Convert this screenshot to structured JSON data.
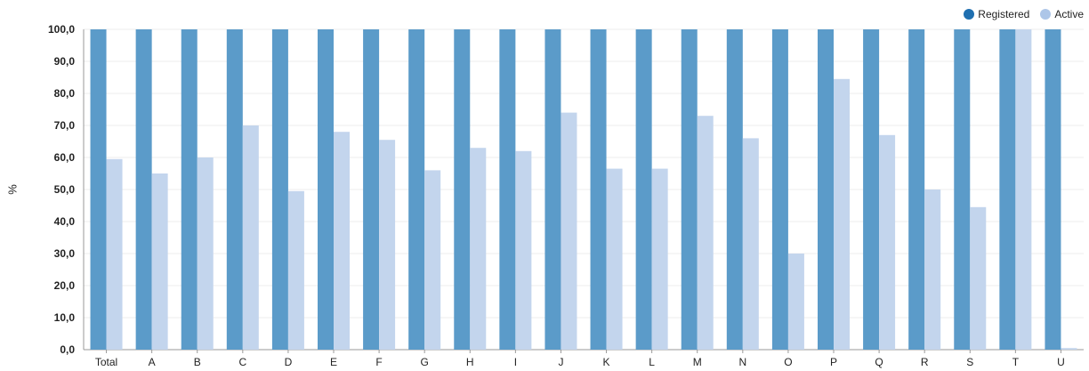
{
  "chart_data": {
    "type": "bar",
    "title": "",
    "xlabel": "",
    "ylabel": "%",
    "ylim": [
      0,
      100
    ],
    "yticks": [
      "0,0",
      "10,0",
      "20,0",
      "30,0",
      "40,0",
      "50,0",
      "60,0",
      "70,0",
      "80,0",
      "90,0",
      "100,0"
    ],
    "grid": true,
    "legend_position": "top-right",
    "categories": [
      "Total",
      "A",
      "B",
      "C",
      "D",
      "E",
      "F",
      "G",
      "H",
      "I",
      "J",
      "K",
      "L",
      "M",
      "N",
      "O",
      "P",
      "Q",
      "R",
      "S",
      "T",
      "U"
    ],
    "series": [
      {
        "name": "Registered",
        "color": "#5b9bc9",
        "values": [
          100,
          100,
          100,
          100,
          100,
          100,
          100,
          100,
          100,
          100,
          100,
          100,
          100,
          100,
          100,
          100,
          100,
          100,
          100,
          100,
          100,
          100
        ]
      },
      {
        "name": "Active",
        "color": "#c3d5ed",
        "values": [
          59.5,
          55,
          60,
          70,
          49.5,
          68,
          65.5,
          56,
          63,
          62,
          74,
          56.5,
          56.5,
          73,
          66,
          30,
          84.5,
          67,
          50,
          44.5,
          100,
          0.5
        ]
      }
    ]
  },
  "legend_colors": {
    "Registered": "#1f6fb0",
    "Active": "#adc6e8"
  }
}
